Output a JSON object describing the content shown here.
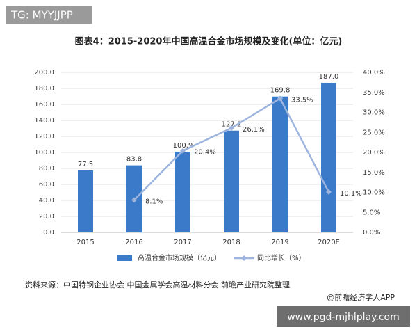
{
  "chart_data": {
    "type": "bar",
    "watermark": "TG: MYYJJPP",
    "title": "图表4：2015-2020年中国高温合金市场规模及变化(单位：亿元)",
    "categories": [
      "2015",
      "2016",
      "2017",
      "2018",
      "2019",
      "2020E"
    ],
    "series": [
      {
        "name": "高温合金市场规模（亿元）",
        "type": "bar",
        "color": "#3b79c9",
        "values": [
          77.5,
          83.8,
          100.9,
          127.2,
          169.8,
          187.0
        ],
        "value_labels": [
          "77.5",
          "83.8",
          "100.9",
          "127.2",
          "169.8",
          "187.0"
        ]
      },
      {
        "name": "同比增长（%）",
        "type": "line",
        "axis": "y2",
        "color": "#9db4de",
        "values": [
          null,
          8.1,
          20.4,
          26.1,
          33.5,
          10.1
        ],
        "value_labels": [
          null,
          "8.1%",
          "20.4%",
          "26.1%",
          "33.5%",
          "10.1%"
        ]
      }
    ],
    "ylim": [
      0,
      200
    ],
    "yticks": [
      {
        "value": 0,
        "label": "0.0"
      },
      {
        "value": 20,
        "label": "20.0"
      },
      {
        "value": 40,
        "label": "40.0"
      },
      {
        "value": 60,
        "label": "60.0"
      },
      {
        "value": 80,
        "label": "80.0"
      },
      {
        "value": 100,
        "label": "100.0"
      },
      {
        "value": 120,
        "label": "120.0"
      },
      {
        "value": 140,
        "label": "140.0"
      },
      {
        "value": 160,
        "label": "160.0"
      },
      {
        "value": 180,
        "label": "180.0"
      },
      {
        "value": 200,
        "label": "200.0"
      }
    ],
    "y2lim": [
      0,
      40
    ],
    "y2ticks": [
      {
        "value": 0,
        "label": "0.0%"
      },
      {
        "value": 5,
        "label": "5.0%"
      },
      {
        "value": 10,
        "label": "10.0%"
      },
      {
        "value": 15,
        "label": "15.0%"
      },
      {
        "value": 20,
        "label": "20.0%"
      },
      {
        "value": 25,
        "label": "25.0%"
      },
      {
        "value": 30,
        "label": "30.0%"
      },
      {
        "value": 35,
        "label": "35.0%"
      },
      {
        "value": 40,
        "label": "40.0%"
      }
    ],
    "grid": true,
    "legend": "bottom",
    "source": "资料来源：中国特钢企业协会 中国金属学会高温材料分会 前瞻产业研究院整理",
    "credit": "@前瞻经济学人APP",
    "footer_url": "www.pgd-mjhlplay.com"
  }
}
